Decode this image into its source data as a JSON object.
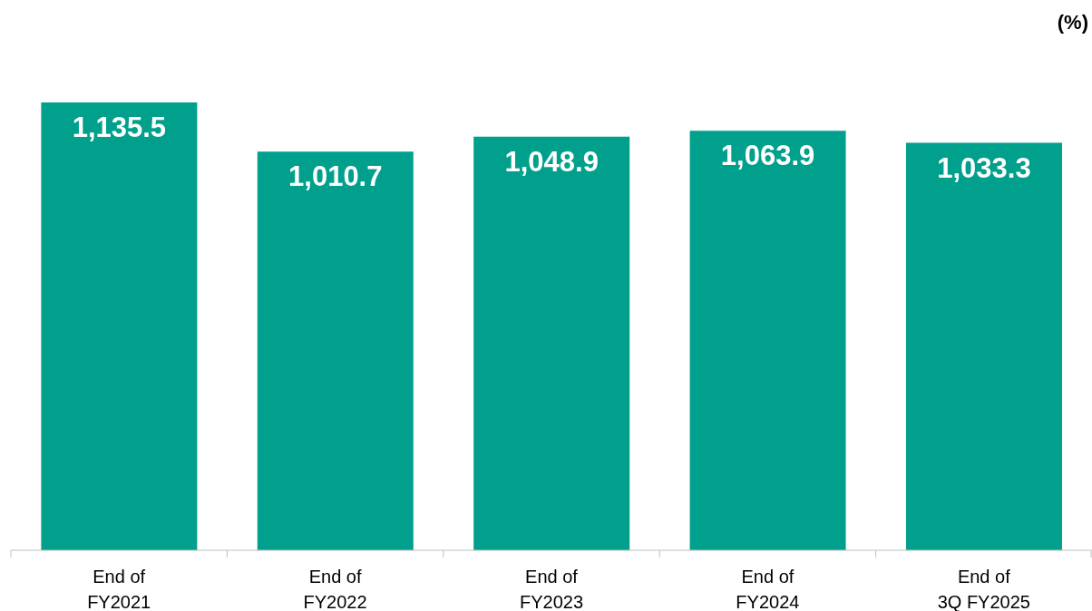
{
  "chart_data": {
    "type": "bar",
    "ylabel": "(%)",
    "categories": [
      "End of\nFY2021",
      "End of\nFY2022",
      "End of\nFY2023",
      "End of\nFY2024",
      "End of\n3Q FY2025"
    ],
    "values": [
      1135.5,
      1010.7,
      1048.9,
      1063.9,
      1033.3
    ],
    "value_labels": [
      "1,135.5",
      "1,010.7",
      "1,048.9",
      "1,063.9",
      "1,033.3"
    ],
    "color": "#00a08c",
    "grid": false,
    "legend": false
  }
}
